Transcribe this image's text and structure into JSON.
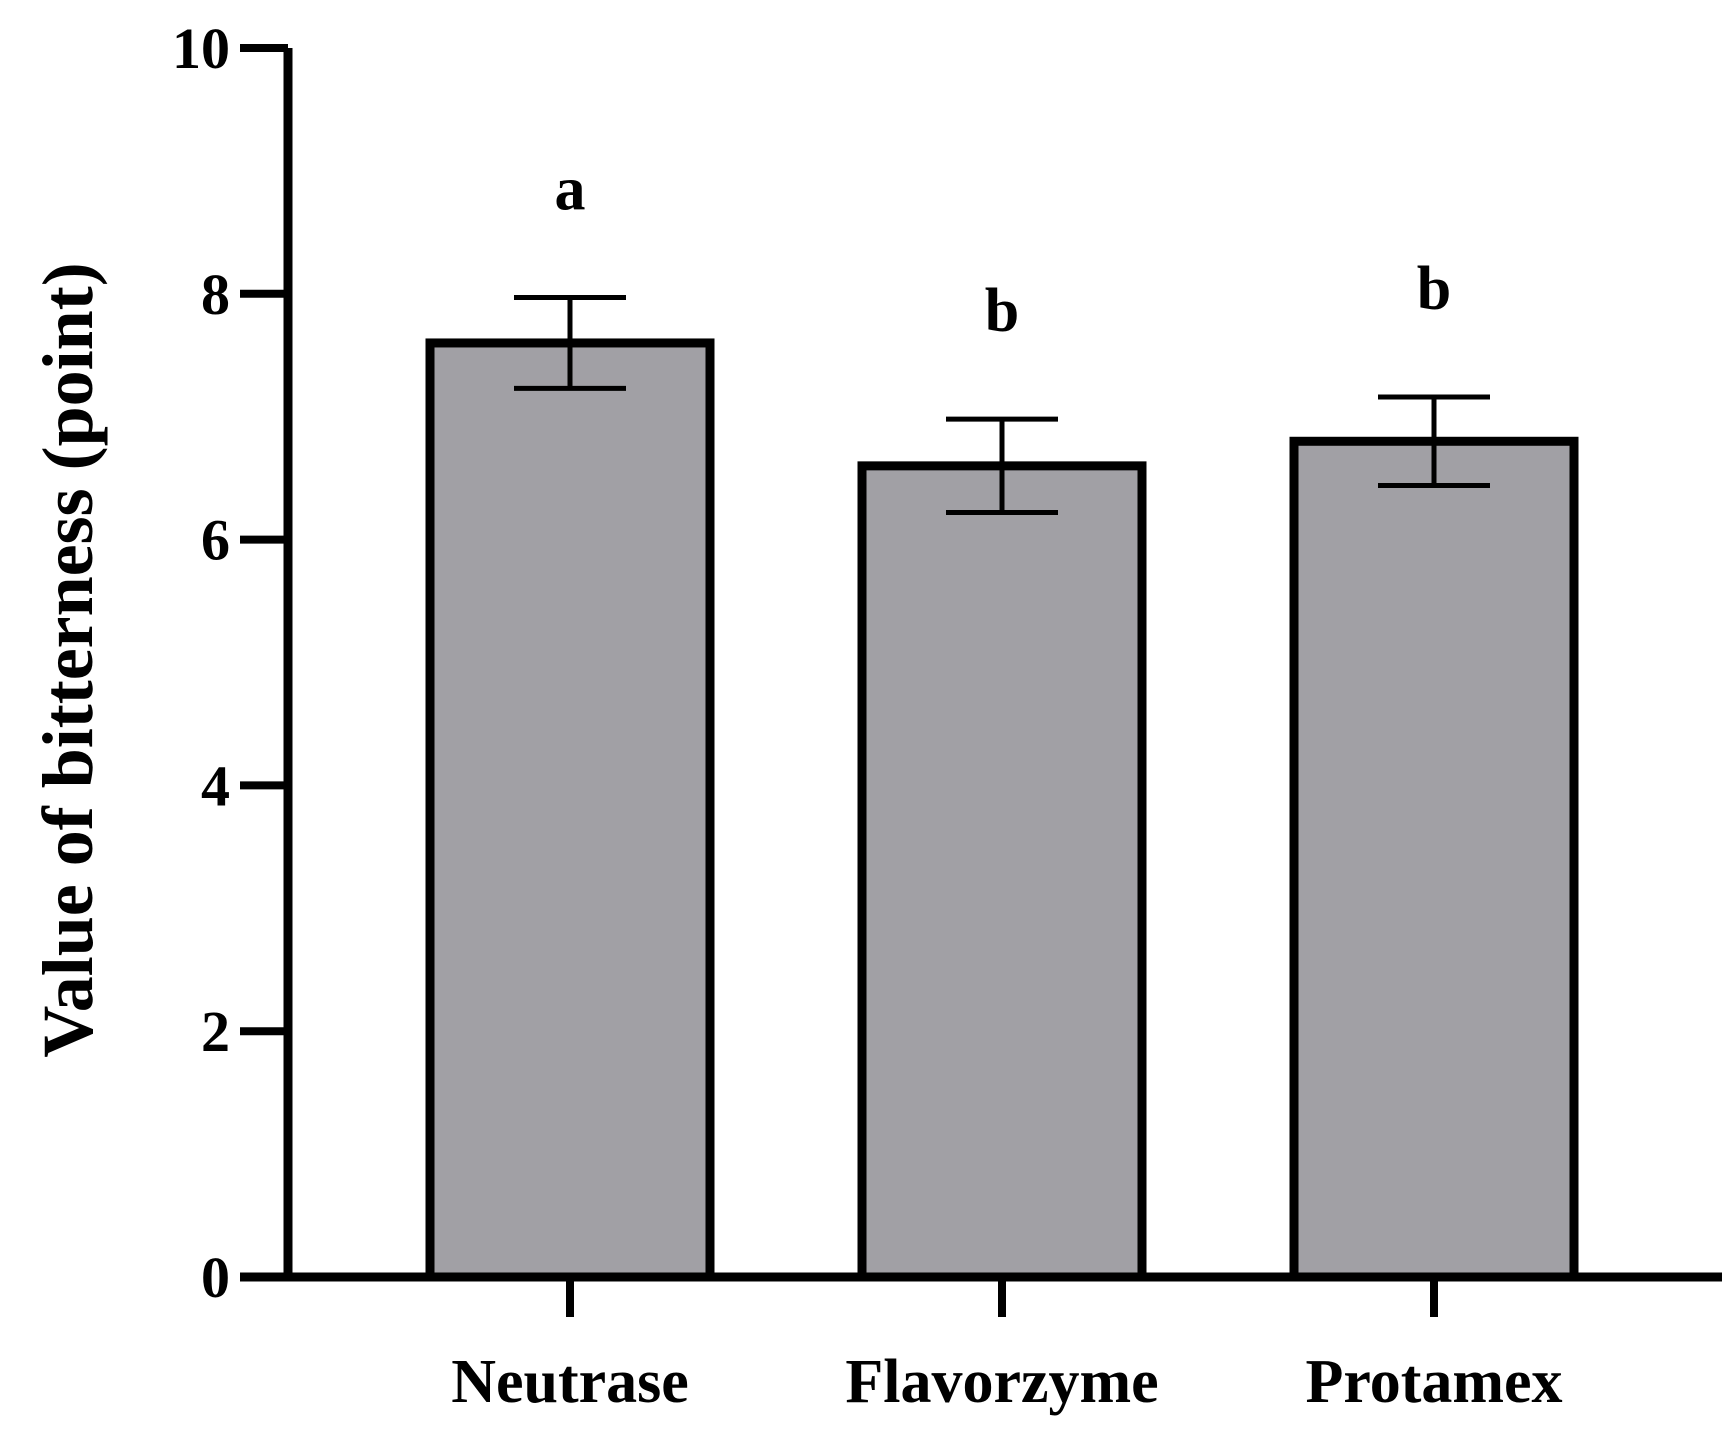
{
  "chart_data": {
    "type": "bar",
    "title": "",
    "xlabel": "",
    "ylabel": "Value of bitterness (point)",
    "categories": [
      "Neutrase",
      "Flavorzyme",
      "Protamex"
    ],
    "values": [
      7.6,
      6.6,
      6.8
    ],
    "errors": [
      0.37,
      0.38,
      0.36
    ],
    "significance_letters": [
      "a",
      "b",
      "b"
    ],
    "ylim": [
      0,
      10
    ],
    "yticks": [
      0,
      2,
      4,
      6,
      8,
      10
    ],
    "ytick_labels": [
      "0",
      "2",
      "4",
      "6",
      "8",
      "10"
    ],
    "grid": false,
    "legend": "none",
    "colors": {
      "bar_fill": "#a1a0a5",
      "stroke": "#000000"
    }
  }
}
